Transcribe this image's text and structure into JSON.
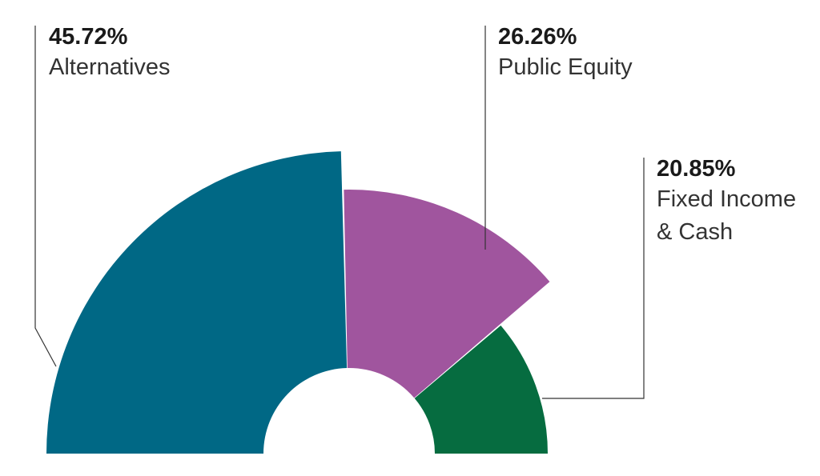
{
  "chart_data": {
    "type": "pie",
    "variant": "half-donut with varying slice radii",
    "title": "",
    "slices": [
      {
        "label": "Alternatives",
        "value": 45.72,
        "value_label": "45.72%",
        "color": "#006885",
        "label_lines": [
          "Alternatives"
        ]
      },
      {
        "label": "Public Equity",
        "value": 26.26,
        "value_label": "26.26%",
        "color": "#a0559e",
        "label_lines": [
          "Public Equity"
        ]
      },
      {
        "label": "Fixed Income & Cash",
        "value": 20.85,
        "value_label": "20.85%",
        "color": "#066c40",
        "label_lines": [
          "Fixed Income",
          "& Cash"
        ]
      }
    ],
    "legend": "none"
  }
}
